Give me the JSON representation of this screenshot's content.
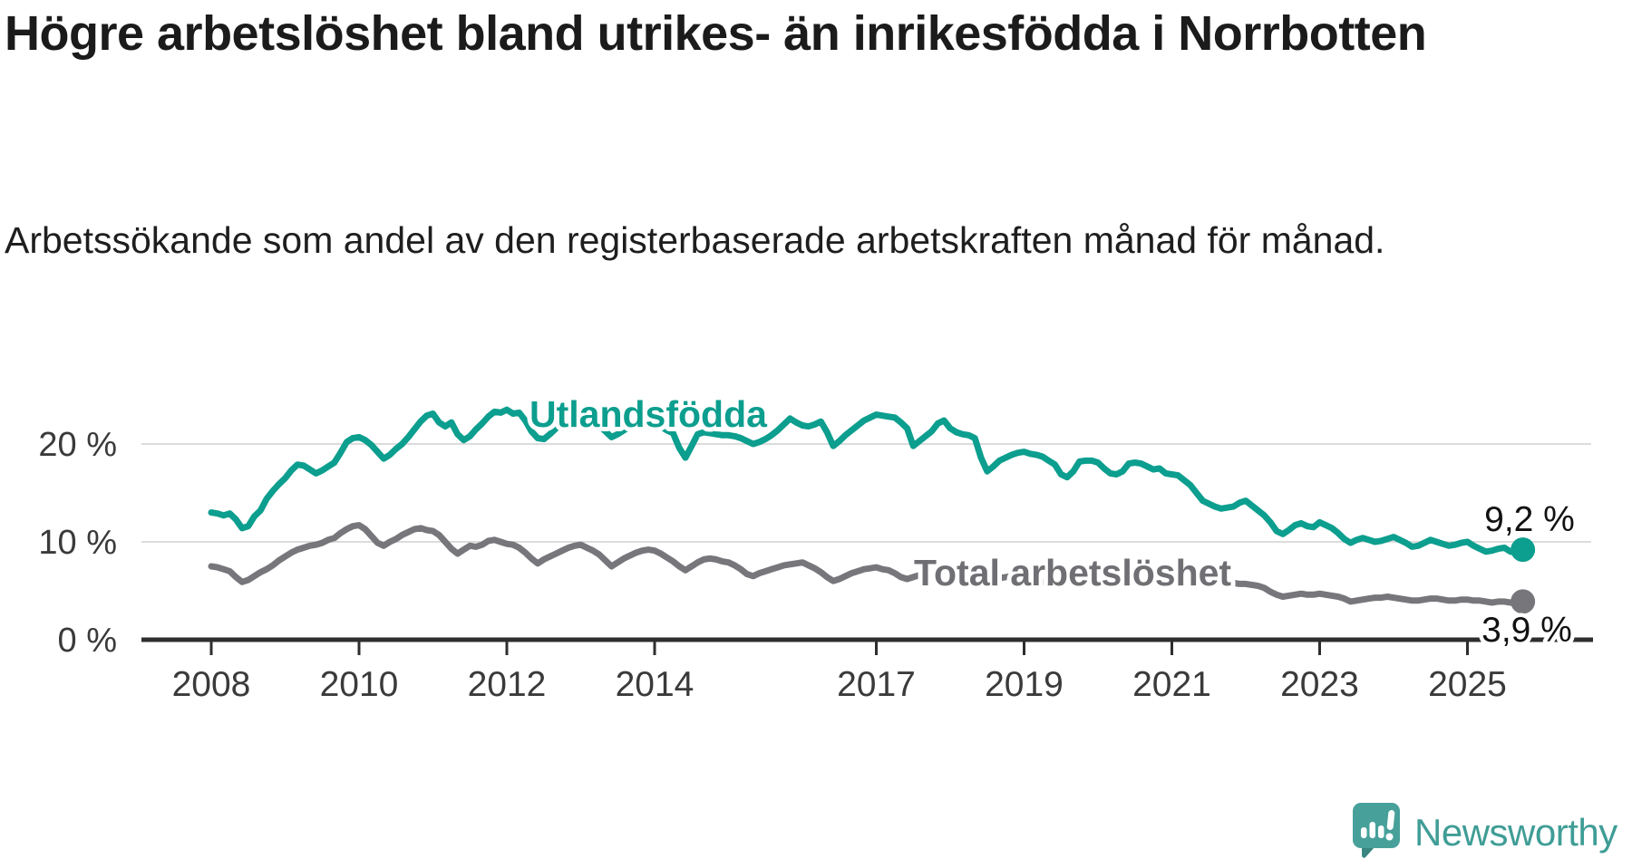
{
  "header": {
    "title": "Högre arbetslöshet bland utrikes- än inrikesfödda i Norrbotten",
    "subtitle": "Arbetssökande som andel av den registerbaserade arbetskraften månad för månad."
  },
  "colors": {
    "foreign_born_line": "#0c9e8e",
    "total_line": "#76767b",
    "total_label": "#6f6f74",
    "grid": "#dcdcdc",
    "axis": "#2e2e2e",
    "tick_text": "#3a3a3a",
    "value_text": "#111111",
    "logo_teal": "#3f9d96"
  },
  "chart_data": {
    "type": "line",
    "unit": "%",
    "grid": "horizontal",
    "x_start_year": 2008,
    "x_step_months": 1,
    "x_end_label_implied": "okt 2025",
    "xlim": [
      2007.1,
      2026.7
    ],
    "ylim": [
      0,
      24.5
    ],
    "x_ticks": [
      2008,
      2010,
      2012,
      2014,
      2017,
      2019,
      2021,
      2023,
      2025
    ],
    "y_ticks": [
      0,
      10,
      20
    ],
    "y_tick_labels": [
      "0 %",
      "10 %",
      "20 %"
    ],
    "series": [
      {
        "name": "Utlandsfödda",
        "end_label": "9,2 %",
        "end_value": 9.2,
        "values": [
          13.0,
          12.9,
          12.7,
          12.9,
          12.3,
          11.4,
          11.6,
          12.6,
          13.2,
          14.4,
          15.2,
          15.9,
          16.5,
          17.3,
          17.9,
          17.8,
          17.4,
          17.0,
          17.3,
          17.7,
          18.1,
          19.1,
          20.2,
          20.6,
          20.7,
          20.4,
          19.9,
          19.2,
          18.5,
          18.9,
          19.5,
          20.0,
          20.7,
          21.5,
          22.3,
          22.9,
          23.1,
          22.2,
          21.8,
          22.2,
          21.0,
          20.4,
          20.8,
          21.5,
          22.1,
          22.8,
          23.3,
          23.2,
          23.5,
          23.1,
          23.2,
          22.4,
          21.3,
          20.6,
          20.5,
          21.0,
          21.6,
          22.1,
          22.5,
          22.7,
          22.9,
          22.6,
          22.4,
          21.9,
          21.3,
          20.7,
          21.0,
          21.4,
          21.8,
          22.1,
          22.3,
          22.4,
          22.2,
          21.8,
          21.4,
          21.1,
          19.6,
          18.6,
          19.8,
          21.0,
          21.2,
          21.1,
          21.0,
          20.9,
          20.9,
          20.8,
          20.6,
          20.3,
          20.0,
          20.2,
          20.5,
          20.9,
          21.4,
          22.0,
          22.6,
          22.2,
          21.9,
          21.8,
          22.0,
          22.3,
          21.2,
          19.8,
          20.3,
          20.9,
          21.4,
          21.9,
          22.4,
          22.7,
          23.0,
          22.9,
          22.8,
          22.7,
          22.2,
          21.6,
          19.8,
          20.3,
          20.8,
          21.3,
          22.1,
          22.4,
          21.6,
          21.2,
          21.0,
          20.9,
          20.6,
          18.6,
          17.2,
          17.7,
          18.3,
          18.6,
          18.9,
          19.1,
          19.2,
          19.0,
          18.9,
          18.7,
          18.3,
          17.9,
          16.9,
          16.6,
          17.2,
          18.2,
          18.3,
          18.3,
          18.1,
          17.5,
          17.0,
          16.9,
          17.2,
          18.0,
          18.1,
          18.0,
          17.7,
          17.4,
          17.5,
          17.0,
          16.9,
          16.8,
          16.3,
          15.8,
          15.0,
          14.2,
          13.9,
          13.6,
          13.4,
          13.5,
          13.6,
          14.0,
          14.2,
          13.7,
          13.2,
          12.7,
          12.0,
          11.1,
          10.8,
          11.2,
          11.7,
          11.9,
          11.6,
          11.5,
          12.0,
          11.7,
          11.4,
          10.9,
          10.3,
          9.9,
          10.2,
          10.4,
          10.2,
          10.0,
          10.1,
          10.3,
          10.5,
          10.2,
          9.9,
          9.5,
          9.6,
          9.9,
          10.2,
          10.0,
          9.8,
          9.6,
          9.7,
          9.9,
          10.0,
          9.6,
          9.3,
          9.0,
          9.1,
          9.3,
          9.4,
          9.0,
          8.9,
          9.2
        ]
      },
      {
        "name": "Total arbetslöshet",
        "end_label": "3,9 %",
        "end_value": 3.9,
        "values": [
          7.5,
          7.4,
          7.2,
          7.0,
          6.4,
          5.9,
          6.1,
          6.5,
          6.9,
          7.2,
          7.6,
          8.1,
          8.5,
          8.9,
          9.2,
          9.4,
          9.6,
          9.7,
          9.9,
          10.2,
          10.4,
          10.9,
          11.3,
          11.6,
          11.7,
          11.3,
          10.6,
          9.9,
          9.6,
          10.0,
          10.3,
          10.7,
          11.0,
          11.3,
          11.4,
          11.2,
          11.1,
          10.7,
          10.0,
          9.3,
          8.8,
          9.2,
          9.6,
          9.5,
          9.7,
          10.1,
          10.2,
          10.0,
          9.8,
          9.7,
          9.4,
          8.9,
          8.3,
          7.8,
          8.2,
          8.5,
          8.8,
          9.1,
          9.4,
          9.6,
          9.7,
          9.4,
          9.1,
          8.7,
          8.1,
          7.5,
          7.9,
          8.3,
          8.6,
          8.9,
          9.1,
          9.2,
          9.1,
          8.8,
          8.4,
          8.0,
          7.5,
          7.1,
          7.5,
          7.9,
          8.2,
          8.3,
          8.2,
          8.0,
          7.9,
          7.6,
          7.2,
          6.7,
          6.5,
          6.8,
          7.0,
          7.2,
          7.4,
          7.6,
          7.7,
          7.8,
          7.9,
          7.6,
          7.3,
          6.9,
          6.4,
          6.0,
          6.2,
          6.5,
          6.8,
          7.0,
          7.2,
          7.3,
          7.4,
          7.2,
          7.1,
          6.8,
          6.4,
          6.2,
          6.4,
          6.6,
          6.8,
          7.0,
          7.1,
          7.1,
          7.0,
          6.8,
          6.5,
          6.2,
          5.9,
          5.7,
          5.9,
          6.1,
          6.3,
          6.4,
          6.5,
          6.5,
          6.5,
          6.3,
          6.1,
          5.9,
          5.7,
          5.6,
          5.8,
          6.0,
          6.1,
          6.2,
          6.3,
          6.3,
          6.3,
          6.2,
          6.4,
          6.9,
          7.2,
          7.4,
          7.5,
          7.4,
          7.3,
          7.1,
          7.0,
          6.9,
          6.8,
          6.6,
          6.4,
          6.2,
          6.0,
          5.9,
          5.9,
          5.9,
          5.9,
          5.9,
          5.8,
          5.7,
          5.7,
          5.6,
          5.5,
          5.3,
          4.9,
          4.6,
          4.4,
          4.5,
          4.6,
          4.7,
          4.6,
          4.6,
          4.7,
          4.6,
          4.5,
          4.4,
          4.2,
          3.9,
          4.0,
          4.1,
          4.2,
          4.3,
          4.3,
          4.4,
          4.3,
          4.2,
          4.1,
          4.0,
          4.0,
          4.1,
          4.2,
          4.2,
          4.1,
          4.0,
          4.0,
          4.1,
          4.1,
          4.0,
          4.0,
          3.9,
          3.8,
          3.9,
          3.9,
          3.8,
          3.7,
          3.9
        ]
      }
    ]
  },
  "footer": {
    "brand": "Newsworthy"
  }
}
